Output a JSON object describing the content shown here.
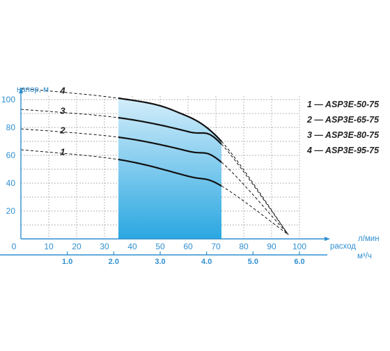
{
  "chart_data": {
    "type": "line",
    "ylabel": "напор, м",
    "xlabel": "расход",
    "x_unit_top": "л/мин",
    "x_unit_bottom": "м³/ч",
    "x_ticks": [
      "0",
      "10",
      "20",
      "30",
      "40",
      "50",
      "60",
      "70",
      "80",
      "90",
      "100"
    ],
    "x_ticks_m3h": [
      "1.0",
      "2.0",
      "3.0",
      "4.0",
      "5.0",
      "6.0"
    ],
    "y_ticks": [
      "20",
      "40",
      "60",
      "80",
      "100"
    ],
    "xlim": [
      0,
      110
    ],
    "ylim": [
      0,
      110
    ],
    "grid": true,
    "working_range": [
      35,
      72
    ],
    "series": [
      {
        "label": "1",
        "legend": "1 — ASP3E-50-75",
        "x": [
          0,
          35,
          60,
          72,
          96
        ],
        "y": [
          64,
          57,
          45,
          38,
          3
        ]
      },
      {
        "label": "2",
        "legend": "2 — ASP3E-65-75",
        "x": [
          0,
          35,
          60,
          72,
          96
        ],
        "y": [
          79,
          73,
          63,
          55,
          3
        ]
      },
      {
        "label": "3",
        "legend": "3 — ASP3E-80-75",
        "x": [
          0,
          35,
          60,
          72,
          96
        ],
        "y": [
          93,
          87,
          77,
          68,
          3
        ]
      },
      {
        "label": "4",
        "legend": "4 — ASP3E-95-75",
        "x": [
          0,
          35,
          55,
          72,
          96
        ],
        "y": [
          108,
          101,
          92,
          70,
          3
        ]
      }
    ],
    "colors": {
      "axis": "#2f8fd0",
      "fill_top": "#daf0fb",
      "fill_bottom": "#2aa7e1",
      "curve": "#111111",
      "grid": "#9a9a9a"
    }
  }
}
